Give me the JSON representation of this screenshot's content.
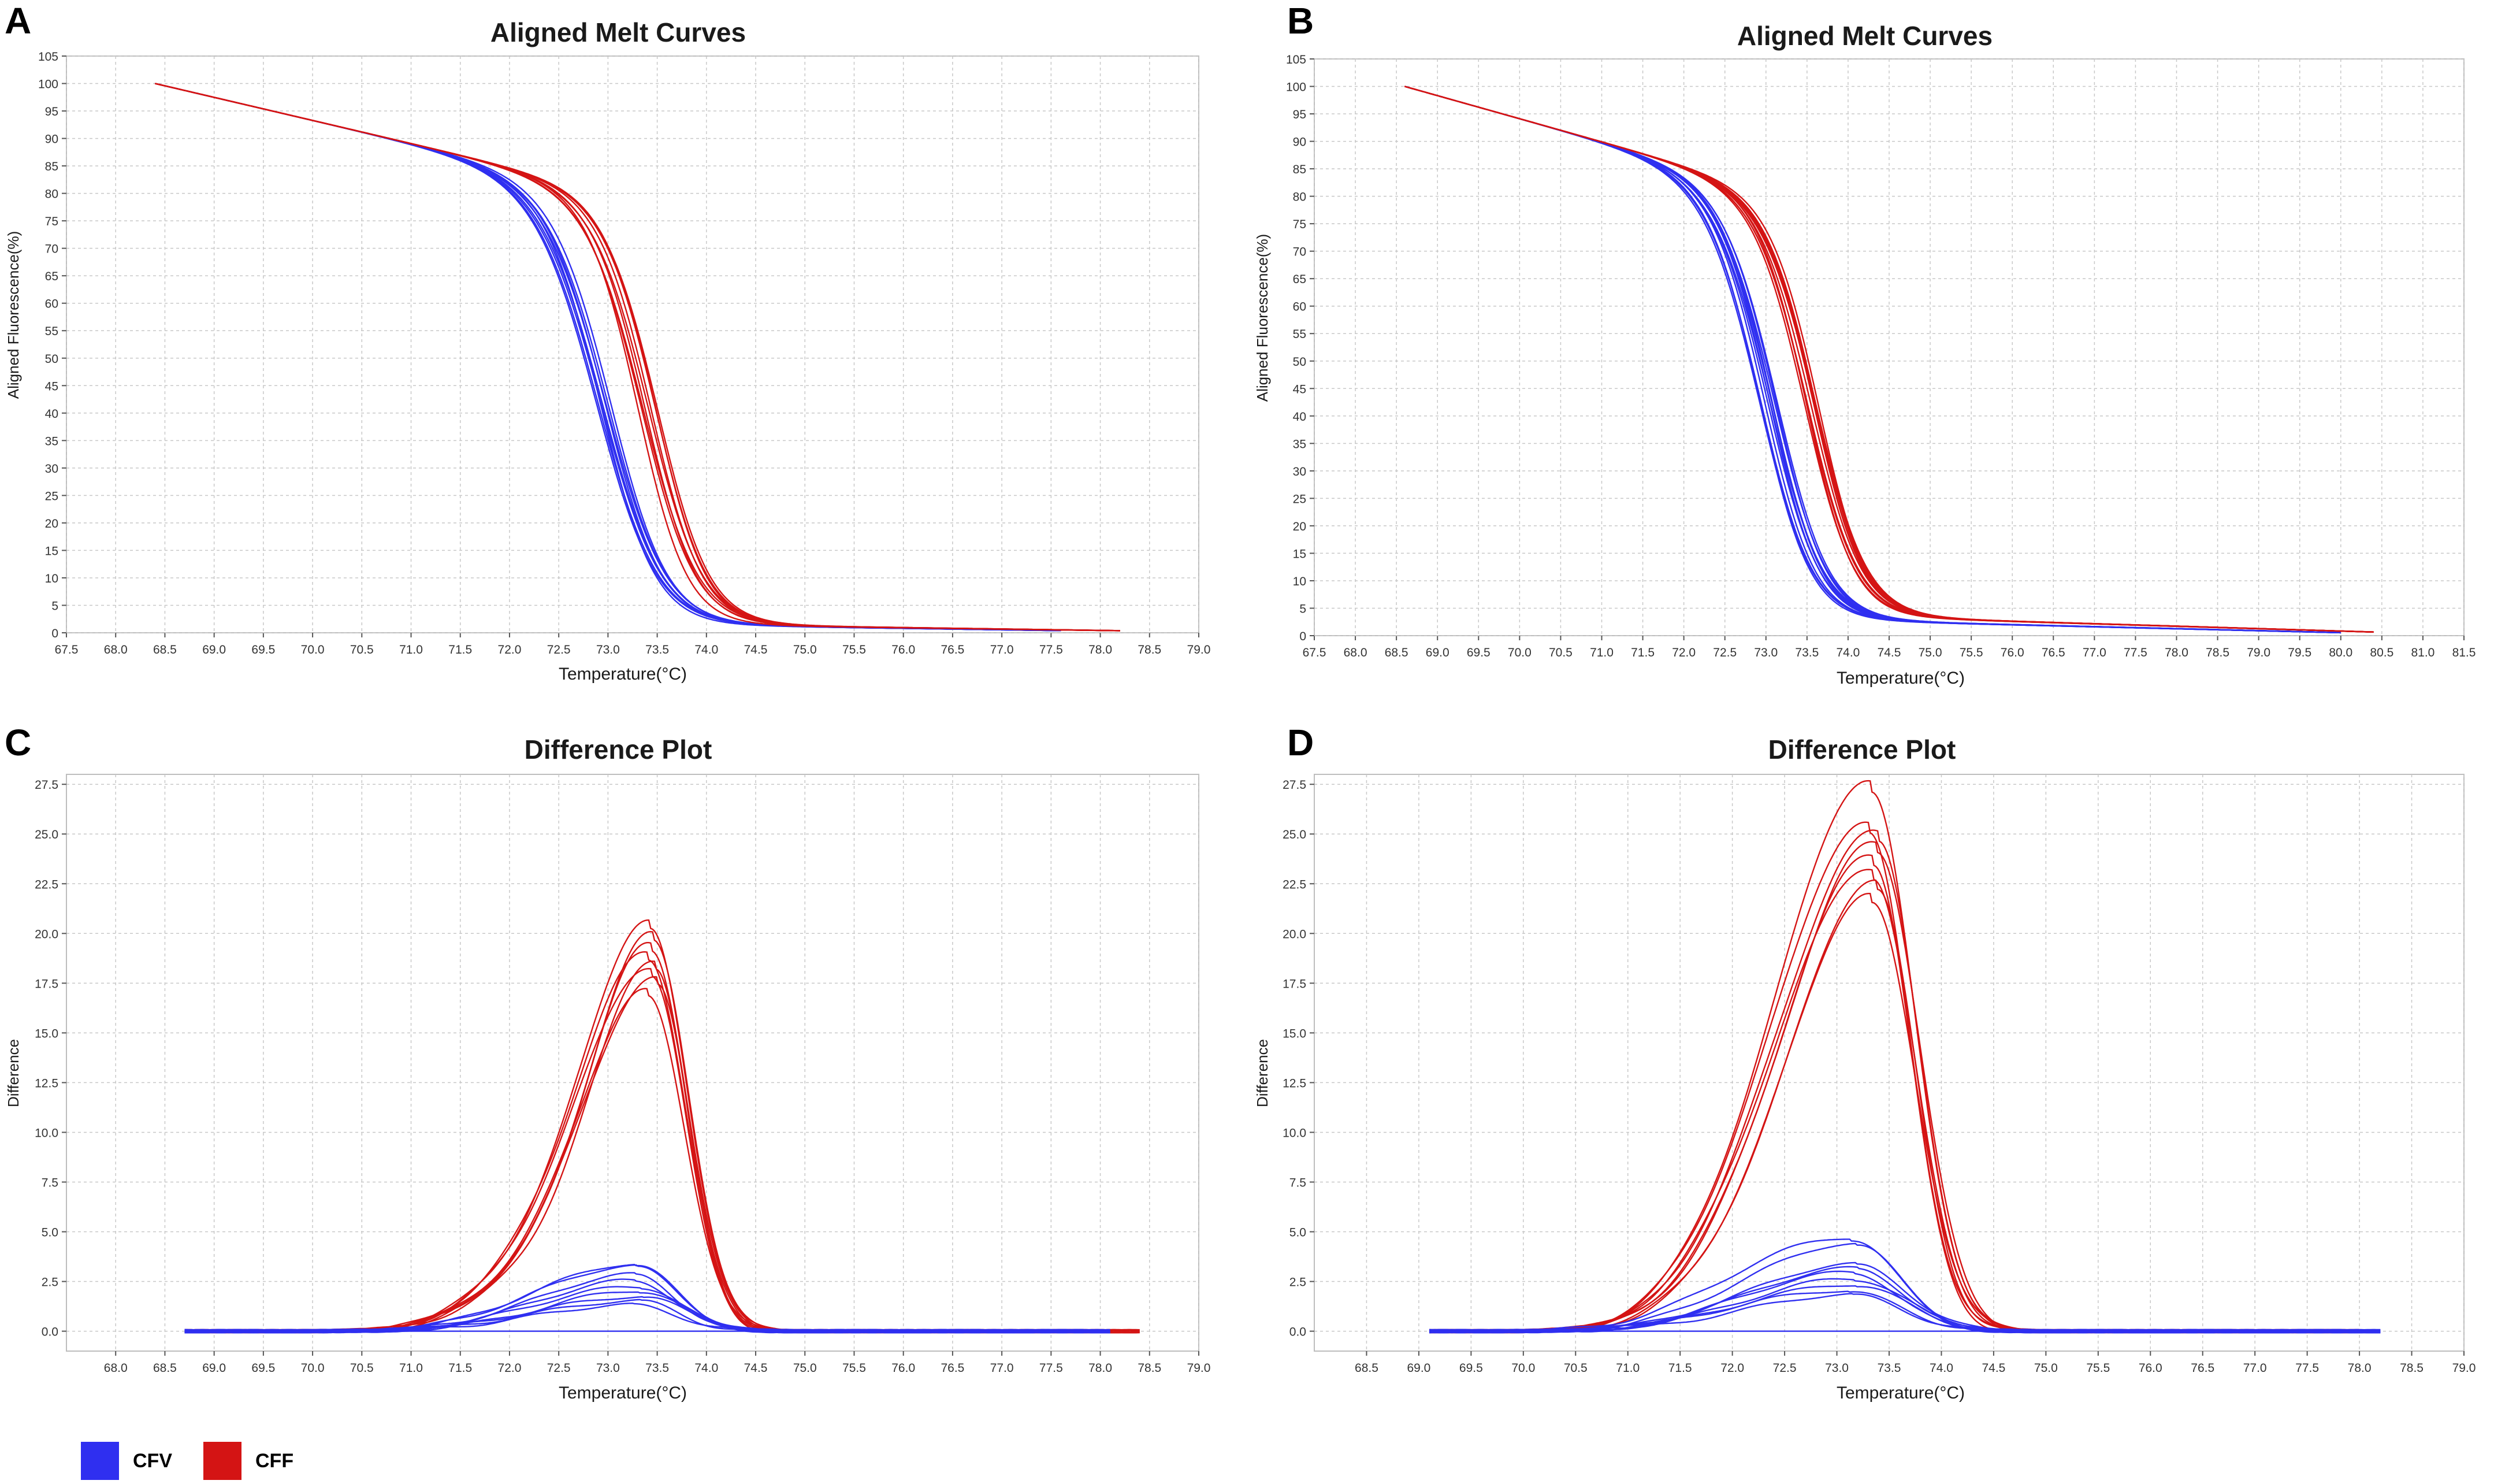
{
  "colors": {
    "CFV": "#2f2ff0",
    "CFF": "#d41414",
    "grid": "#c8c8c8",
    "axis": "#555555"
  },
  "legend": [
    {
      "label": "CFV",
      "color": "#2f2ff0"
    },
    {
      "label": "CFF",
      "color": "#d41414"
    }
  ],
  "chart_data": [
    {
      "panel": "A",
      "type": "line",
      "kind": "melt",
      "title": "Aligned Melt Curves",
      "xlabel": "Temperature(°C)",
      "ylabel": "Aligned Fluorescence(%)",
      "xlim": [
        67.5,
        79.0
      ],
      "ylim": [
        0,
        105
      ],
      "xticks": [
        "67.5",
        "68.0",
        "68.5",
        "69.0",
        "69.5",
        "70.0",
        "70.5",
        "71.0",
        "71.5",
        "72.0",
        "72.5",
        "73.0",
        "73.5",
        "74.0",
        "74.5",
        "75.0",
        "75.5",
        "76.0",
        "76.5",
        "77.0",
        "77.5",
        "78.0",
        "78.5",
        "79.0"
      ],
      "yticks": [
        "0",
        "5",
        "10",
        "15",
        "20",
        "25",
        "30",
        "35",
        "40",
        "45",
        "50",
        "55",
        "60",
        "65",
        "70",
        "75",
        "80",
        "85",
        "90",
        "95",
        "100",
        "105"
      ],
      "grid": true,
      "series": [
        {
          "name": "CFV",
          "color": "#2f2ff0",
          "start": 68.4,
          "end": 77.6,
          "tm": 73.05,
          "width": 0.62,
          "shoulder": 0.14,
          "tail": 1.2,
          "replicates": 9
        },
        {
          "name": "CFF",
          "color": "#d41414",
          "start": 68.4,
          "end": 78.2,
          "tm": 73.45,
          "width": 0.55,
          "shoulder": 0.1,
          "tail": 1.2,
          "replicates": 9
        }
      ]
    },
    {
      "panel": "B",
      "type": "line",
      "kind": "melt",
      "title": "Aligned Melt Curves",
      "xlabel": "Temperature(°C)",
      "ylabel": "Aligned Fluorescence(%)",
      "xlim": [
        67.5,
        81.5
      ],
      "ylim": [
        0,
        105
      ],
      "xticks": [
        "67.5",
        "68.0",
        "68.5",
        "69.0",
        "69.5",
        "70.0",
        "70.5",
        "71.0",
        "71.5",
        "72.0",
        "72.5",
        "73.0",
        "73.5",
        "74.0",
        "74.5",
        "75.0",
        "75.5",
        "76.0",
        "76.5",
        "77.0",
        "77.5",
        "78.0",
        "78.5",
        "79.0",
        "79.5",
        "80.0",
        "80.5",
        "81.0",
        "81.5"
      ],
      "yticks": [
        "0",
        "5",
        "10",
        "15",
        "20",
        "25",
        "30",
        "35",
        "40",
        "45",
        "50",
        "55",
        "60",
        "65",
        "70",
        "75",
        "80",
        "85",
        "90",
        "95",
        "100",
        "105"
      ],
      "grid": true,
      "series": [
        {
          "name": "CFV",
          "color": "#2f2ff0",
          "start": 68.6,
          "end": 80.0,
          "tm": 73.1,
          "width": 0.65,
          "shoulder": 0.14,
          "tail": 2.5,
          "replicates": 12
        },
        {
          "name": "CFF",
          "color": "#d41414",
          "start": 68.6,
          "end": 80.4,
          "tm": 73.6,
          "width": 0.62,
          "shoulder": 0.1,
          "tail": 3.0,
          "replicates": 12
        }
      ]
    },
    {
      "panel": "C",
      "type": "line",
      "kind": "difference",
      "title": "Difference Plot",
      "xlabel": "Temperature(°C)",
      "ylabel": "Difference",
      "xlim": [
        67.5,
        79.0
      ],
      "ylim": [
        -1.0,
        28.0
      ],
      "xticks": [
        "68.0",
        "68.5",
        "69.0",
        "69.5",
        "70.0",
        "70.5",
        "71.0",
        "71.5",
        "72.0",
        "72.5",
        "73.0",
        "73.5",
        "74.0",
        "74.5",
        "75.0",
        "75.5",
        "76.0",
        "76.5",
        "77.0",
        "77.5",
        "78.0",
        "78.5",
        "79.0"
      ],
      "yticks": [
        "0.0",
        "2.5",
        "5.0",
        "7.5",
        "10.0",
        "12.5",
        "15.0",
        "17.5",
        "20.0",
        "22.5",
        "25.0",
        "27.5"
      ],
      "grid": true,
      "series": [
        {
          "name": "CFF",
          "color": "#d41414",
          "start": 68.7,
          "end": 78.4,
          "peak_x": 73.45,
          "peaks": [
            20.2,
            19.6,
            19.1,
            18.7,
            18.3,
            17.9,
            17.4,
            16.8
          ],
          "left_width": 0.95,
          "right_width": 0.5
        },
        {
          "name": "CFV",
          "color": "#2f2ff0",
          "start": 68.7,
          "end": 78.1,
          "peak_x": 73.3,
          "peaks": [
            3.3,
            3.2,
            2.8,
            2.5,
            2.2,
            2.0,
            1.7,
            1.5,
            1.3,
            0.0
          ],
          "left_width": 1.2,
          "right_width": 0.6
        }
      ]
    },
    {
      "panel": "D",
      "type": "line",
      "kind": "difference",
      "title": "Difference Plot",
      "xlabel": "Temperature(°C)",
      "ylabel": "Difference",
      "xlim": [
        68.0,
        79.0
      ],
      "ylim": [
        -1.0,
        28.0
      ],
      "xticks": [
        "68.5",
        "69.0",
        "69.5",
        "70.0",
        "70.5",
        "71.0",
        "71.5",
        "72.0",
        "72.5",
        "73.0",
        "73.5",
        "74.0",
        "74.5",
        "75.0",
        "75.5",
        "76.0",
        "76.5",
        "77.0",
        "77.5",
        "78.0",
        "78.5",
        "79.0"
      ],
      "yticks": [
        "0.0",
        "2.5",
        "5.0",
        "7.5",
        "10.0",
        "12.5",
        "15.0",
        "17.5",
        "20.0",
        "22.5",
        "25.0",
        "27.5"
      ],
      "grid": true,
      "series": [
        {
          "name": "CFF",
          "color": "#d41414",
          "start": 69.1,
          "end": 78.0,
          "peak_x": 73.35,
          "peaks": [
            27.1,
            25.0,
            24.6,
            24.1,
            23.5,
            22.8,
            22.2,
            21.5
          ],
          "left_width": 1.1,
          "right_width": 0.55
        },
        {
          "name": "CFV",
          "color": "#2f2ff0",
          "start": 69.1,
          "end": 78.2,
          "peak_x": 73.15,
          "peaks": [
            4.6,
            4.3,
            3.3,
            3.1,
            2.9,
            2.6,
            2.3,
            2.0,
            1.8,
            0.0
          ],
          "left_width": 1.3,
          "right_width": 0.65
        }
      ]
    }
  ]
}
